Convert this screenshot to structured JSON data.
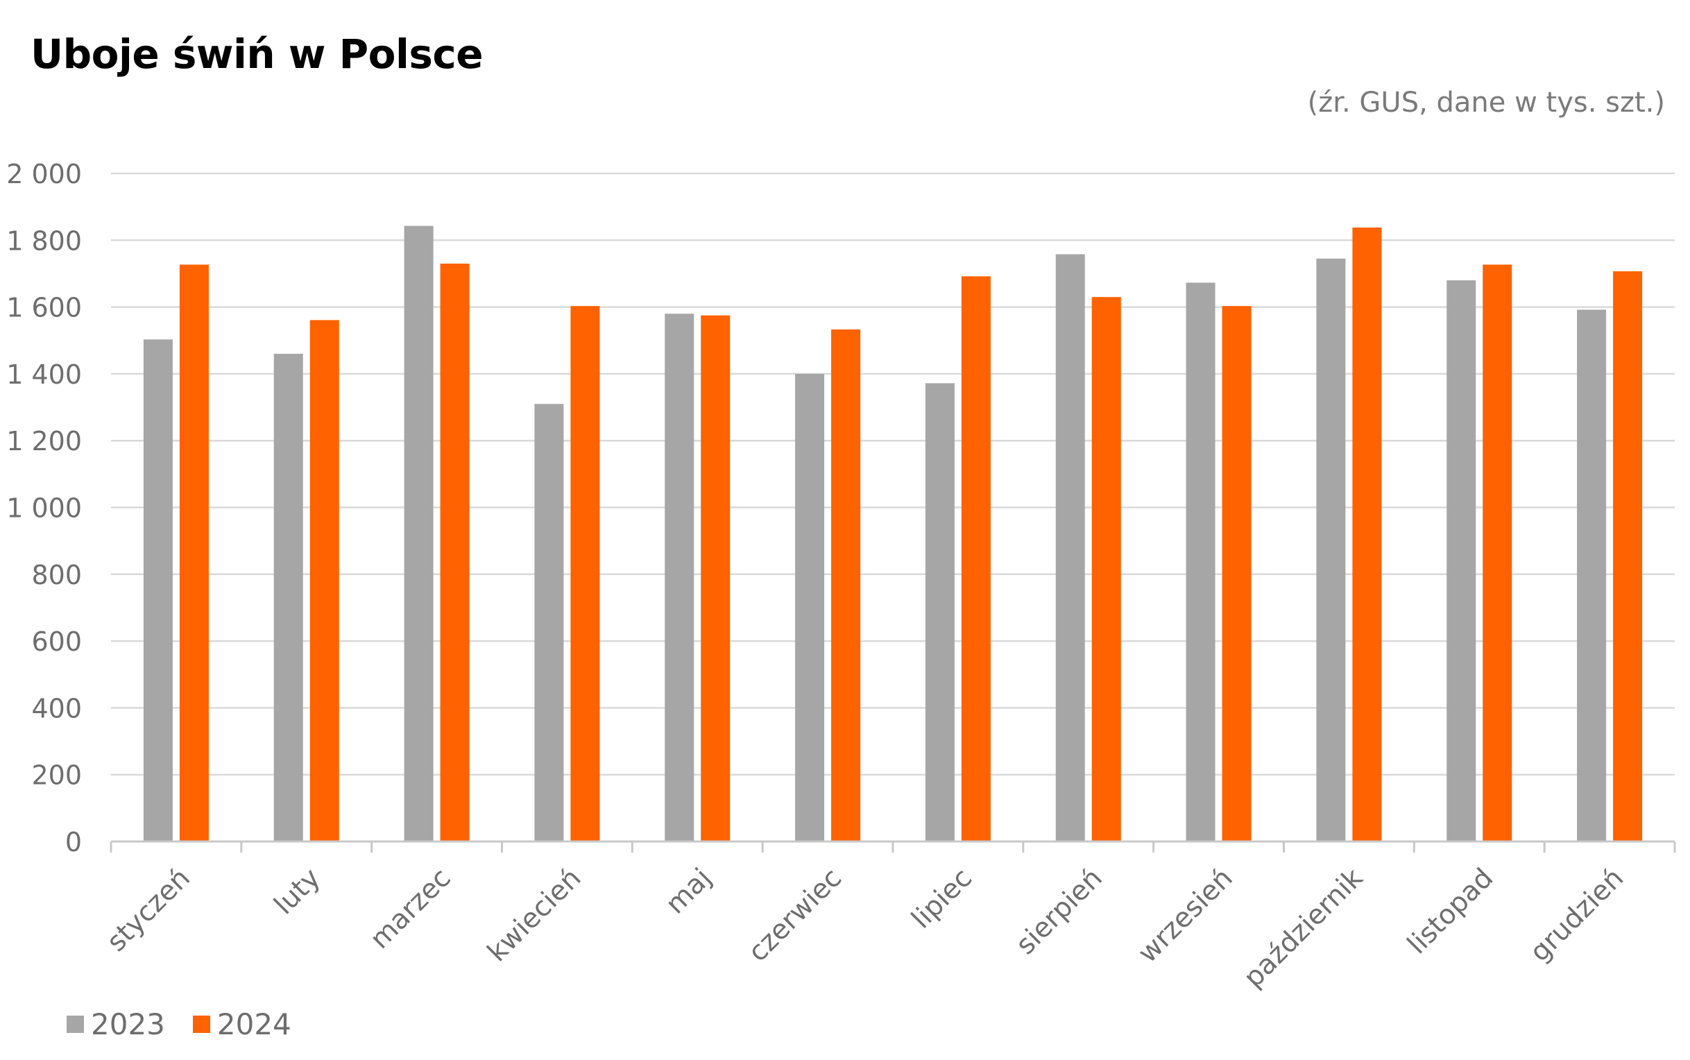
{
  "title": "Uboje świń w Polsce",
  "subtitle": "(źr. GUS, dane w tys. szt.)",
  "chart_data": {
    "type": "bar",
    "title": "Uboje świń w Polsce",
    "subtitle": "(źr. GUS, dane w tys. szt.)",
    "xlabel": "",
    "ylabel": "",
    "ylim": [
      0,
      2000
    ],
    "yticks": [
      0,
      200,
      400,
      600,
      800,
      1000,
      1200,
      1400,
      1600,
      1800,
      2000
    ],
    "ytick_labels": [
      "0",
      "200",
      "400",
      "600",
      "800",
      "1 000",
      "1 200",
      "1 400",
      "1 600",
      "1 800",
      "2 000"
    ],
    "grid": true,
    "legend_position": "bottom-left",
    "categories": [
      "styczeń",
      "luty",
      "marzec",
      "kwiecień",
      "maj",
      "czerwiec",
      "lipiec",
      "sierpień",
      "wrzesień",
      "październik",
      "listopad",
      "grudzień"
    ],
    "series": [
      {
        "name": "2023",
        "color": "#a6a6a6",
        "values": [
          1503,
          1460,
          1843,
          1310,
          1580,
          1400,
          1372,
          1758,
          1673,
          1745,
          1680,
          1592
        ]
      },
      {
        "name": "2024",
        "color": "#ff6200",
        "values": [
          1727,
          1561,
          1730,
          1603,
          1575,
          1533,
          1692,
          1630,
          1603,
          1838,
          1727,
          1707
        ]
      }
    ]
  }
}
